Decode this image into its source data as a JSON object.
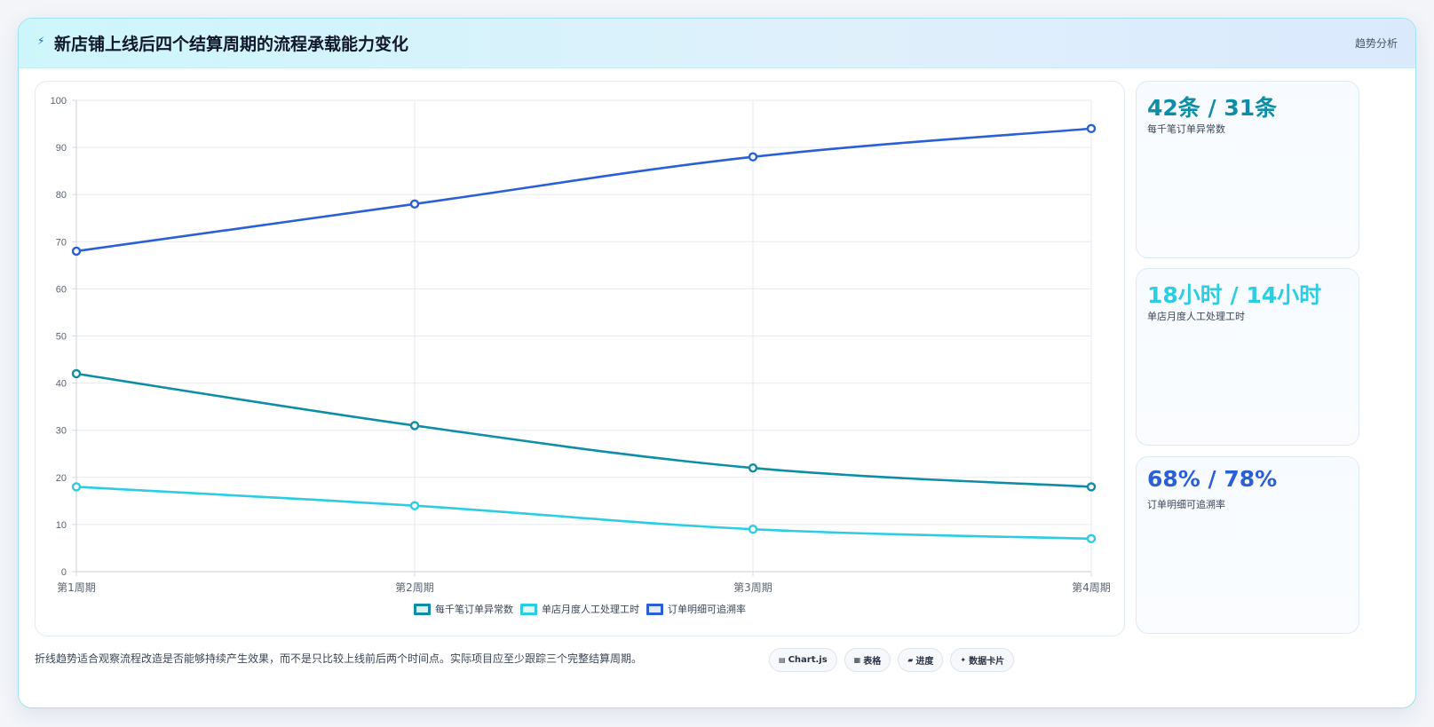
{
  "header": {
    "icon": "lightning-icon",
    "title": "新店铺上线后四个结算周期的流程承载能力变化",
    "tag": "趋势分析"
  },
  "chart_data": {
    "type": "line",
    "categories": [
      "第1周期",
      "第2周期",
      "第3周期",
      "第4周期"
    ],
    "ylim": [
      0,
      100
    ],
    "yticks": [
      0,
      10,
      20,
      30,
      40,
      50,
      60,
      70,
      80,
      90,
      100
    ],
    "grid": true,
    "legend_position": "bottom",
    "series": [
      {
        "name": "每千笔订单异常数",
        "values": [
          42,
          31,
          22,
          18
        ],
        "color": "#0e8ea6"
      },
      {
        "name": "单店月度人工处理工时",
        "values": [
          18,
          14,
          9,
          7
        ],
        "color": "#2ccde3"
      },
      {
        "name": "订单明细可追溯率",
        "values": [
          68,
          78,
          88,
          94
        ],
        "color": "#2b5fd6"
      }
    ]
  },
  "kpis": [
    {
      "value": "42条 / 31条",
      "label": "每千笔订单异常数",
      "color": "#0e8ea6"
    },
    {
      "value": "18小时 / 14小时",
      "label": "单店月度人工处理工时",
      "color": "#2ccde3"
    },
    {
      "value": "68% / 78%",
      "label": "订单明细可追溯率",
      "color": "#2b5fd6"
    }
  ],
  "note": "折线趋势适合观察流程改造是否能够持续产生效果，而不是只比较上线前后两个时间点。实际项目应至少跟踪三个完整结算周期。",
  "chips": [
    {
      "icon": "chart-icon",
      "glyph": "▤",
      "label": "Chart.js"
    },
    {
      "icon": "table-icon",
      "glyph": "▦",
      "label": "表格"
    },
    {
      "icon": "progress-icon",
      "glyph": "▰",
      "label": "进度"
    },
    {
      "icon": "sparkle-icon",
      "glyph": "✦",
      "label": "数据卡片"
    }
  ]
}
